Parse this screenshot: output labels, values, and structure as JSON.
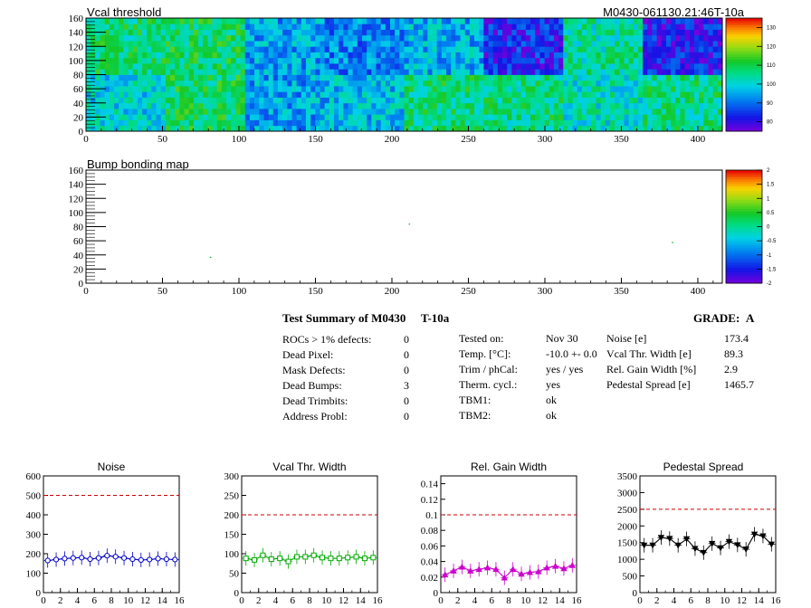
{
  "module_id": "M0430-061130.21:46T-10a",
  "palette": {
    "dash_red": "#cc0000",
    "noise": "#0000cc",
    "vcal_width": "#00aa00",
    "gain_width": "#cc00cc",
    "pedestal": "#000000"
  },
  "summary": {
    "title": "Test Summary of M0430",
    "test_id": "T-10a",
    "grade_label": "GRADE:",
    "grade": "A",
    "left": [
      {
        "label": "ROCs > 1% defects:",
        "value": "0"
      },
      {
        "label": "Dead Pixel:",
        "value": "0"
      },
      {
        "label": "Mask Defects:",
        "value": "0"
      },
      {
        "label": "Dead Bumps:",
        "value": "3"
      },
      {
        "label": "Dead Trimbits:",
        "value": "0"
      },
      {
        "label": "Address Probl:",
        "value": "0"
      }
    ],
    "middle": [
      {
        "label": "Tested on:",
        "value": "Nov 30"
      },
      {
        "label": "Temp. [°C]:",
        "value": "-10.0 +- 0.0"
      },
      {
        "label": "Trim / phCal:",
        "value": "yes / yes"
      },
      {
        "label": "Therm. cycl.:",
        "value": "yes"
      },
      {
        "label": "TBM1:",
        "value": "ok"
      },
      {
        "label": "TBM2:",
        "value": "ok"
      }
    ],
    "right": [
      {
        "label": "Noise [e]",
        "value": "173.4"
      },
      {
        "label": "Vcal Thr. Width [e]",
        "value": "89.3"
      },
      {
        "label": "Rel. Gain Width [%]",
        "value": "2.9"
      },
      {
        "label": "Pedestal Spread [e]",
        "value": "1465.7"
      }
    ]
  },
  "chart_data": [
    {
      "type": "heatmap",
      "title": "Vcal threshold",
      "xlim": [
        0,
        416
      ],
      "ylim": [
        0,
        160
      ],
      "x_ticks": [
        0,
        50,
        100,
        150,
        200,
        250,
        300,
        350,
        400
      ],
      "y_ticks": [
        0,
        20,
        40,
        60,
        80,
        100,
        120,
        140,
        160
      ],
      "z_range": [
        75,
        135
      ],
      "z_ticks": [
        80,
        90,
        100,
        110,
        120,
        130
      ],
      "roc_columns": 8,
      "roc_rows": 2,
      "roc_mean_values": [
        [
          100,
          108,
          95,
          97,
          107,
          106,
          102,
          106
        ],
        [
          107,
          108,
          95,
          92,
          96,
          83,
          104,
          82
        ]
      ]
    },
    {
      "type": "heatmap",
      "title": "Bump bonding map",
      "xlim": [
        0,
        416
      ],
      "ylim": [
        0,
        160
      ],
      "x_ticks": [
        0,
        50,
        100,
        150,
        200,
        250,
        300,
        350,
        400
      ],
      "y_ticks": [
        0,
        20,
        40,
        60,
        80,
        100,
        120,
        140,
        160
      ],
      "z_range": [
        -2,
        2
      ],
      "z_ticks": [
        "2",
        "1.5",
        "1",
        "0.5",
        "0",
        "-0.5",
        "-1",
        "-1.5",
        "-2"
      ],
      "dead_bumps": [
        [
          81,
          36
        ],
        [
          211,
          83
        ],
        [
          383,
          57
        ]
      ]
    },
    {
      "type": "line",
      "title": "Noise",
      "color": "noise",
      "marker": "circle",
      "x": [
        0,
        1,
        2,
        3,
        4,
        5,
        6,
        7,
        8,
        9,
        10,
        11,
        12,
        13,
        14,
        15
      ],
      "values": [
        165,
        170,
        175,
        178,
        180,
        172,
        178,
        190,
        185,
        178,
        172,
        168,
        170,
        175,
        172,
        170
      ],
      "ylim": [
        0,
        600
      ],
      "threshold": 500,
      "y_ticks": [
        0,
        100,
        200,
        300,
        400,
        500,
        600
      ],
      "x_ticks": [
        0,
        2,
        4,
        6,
        8,
        10,
        12,
        14,
        16
      ]
    },
    {
      "type": "line",
      "title": "Vcal Thr. Width",
      "color": "vcal_width",
      "marker": "square",
      "x": [
        0,
        1,
        2,
        3,
        4,
        5,
        6,
        7,
        8,
        9,
        10,
        11,
        12,
        13,
        14,
        15
      ],
      "values": [
        88,
        84,
        96,
        86,
        88,
        80,
        92,
        92,
        96,
        90,
        88,
        88,
        90,
        92,
        88,
        90
      ],
      "ylim": [
        0,
        300
      ],
      "threshold": 200,
      "y_ticks": [
        0,
        50,
        100,
        150,
        200,
        250,
        300
      ],
      "x_ticks": [
        0,
        2,
        4,
        6,
        8,
        10,
        12,
        14,
        16
      ]
    },
    {
      "type": "line",
      "title": "Rel. Gain Width",
      "color": "gain_width",
      "marker": "triangle",
      "x": [
        0,
        1,
        2,
        3,
        4,
        5,
        6,
        7,
        8,
        9,
        10,
        11,
        12,
        13,
        14,
        15
      ],
      "values": [
        0.023,
        0.028,
        0.033,
        0.028,
        0.03,
        0.032,
        0.03,
        0.019,
        0.03,
        0.024,
        0.026,
        0.027,
        0.032,
        0.034,
        0.031,
        0.035
      ],
      "ylim": [
        0,
        0.15
      ],
      "threshold": 0.1,
      "y_ticks": [
        "0",
        "0.02",
        "0.04",
        "0.06",
        "0.08",
        "0.1",
        "0.12",
        "0.14"
      ],
      "x_ticks": [
        0,
        2,
        4,
        6,
        8,
        10,
        12,
        14,
        16
      ]
    },
    {
      "type": "line",
      "title": "Pedestal Spread",
      "color": "pedestal",
      "marker": "triangle-down",
      "x": [
        0,
        1,
        2,
        3,
        4,
        5,
        6,
        7,
        8,
        9,
        10,
        11,
        12,
        13,
        14,
        15
      ],
      "values": [
        1420,
        1420,
        1650,
        1620,
        1420,
        1610,
        1320,
        1200,
        1470,
        1340,
        1530,
        1430,
        1300,
        1750,
        1700,
        1450
      ],
      "ylim": [
        0,
        3500
      ],
      "threshold": 2500,
      "y_ticks": [
        0,
        500,
        1000,
        1500,
        2000,
        2500,
        3000,
        3500
      ],
      "x_ticks": [
        0,
        2,
        4,
        6,
        8,
        10,
        12,
        14,
        16
      ]
    }
  ]
}
